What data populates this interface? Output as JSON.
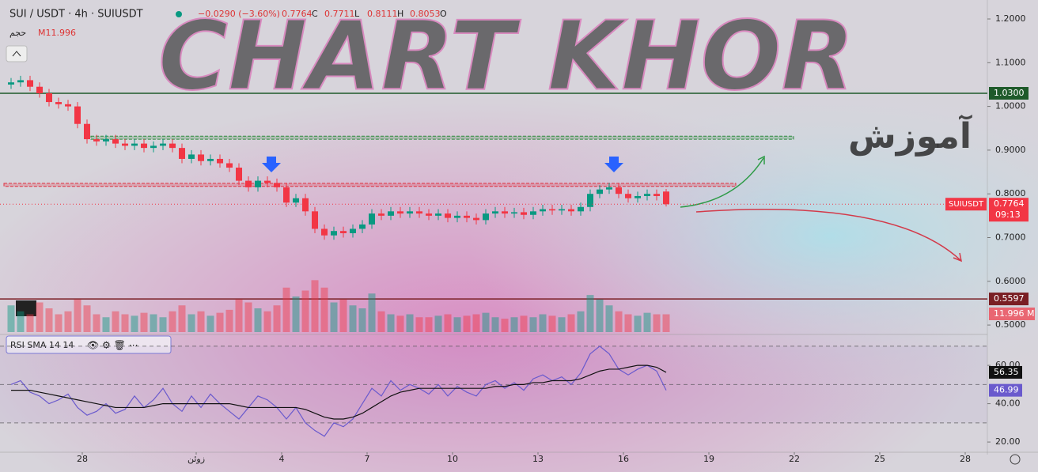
{
  "chart_data": {
    "type": "candlestick",
    "symbol": "SUI / USDT · 4h · SUIUSDT",
    "change": "−0.0290 (−3.60%)",
    "ohlc_letters": [
      "O",
      "H",
      "L",
      "C"
    ],
    "watermark": "CHART KHOR",
    "watermark_sub": "آموزش",
    "up_color": "#089981",
    "down_color": "#f23645",
    "ohlc": [
      [
        1.05,
        1.065,
        1.04,
        1.055
      ],
      [
        1.055,
        1.07,
        1.045,
        1.06
      ],
      [
        1.06,
        1.07,
        1.035,
        1.045
      ],
      [
        1.045,
        1.055,
        1.02,
        1.03
      ],
      [
        1.03,
        1.04,
        1.0,
        1.01
      ],
      [
        1.01,
        1.02,
        0.995,
        1.005
      ],
      [
        1.005,
        1.015,
        0.99,
        1.0
      ],
      [
        1.0,
        1.01,
        0.95,
        0.96
      ],
      [
        0.96,
        0.97,
        0.915,
        0.925
      ],
      [
        0.925,
        0.935,
        0.91,
        0.92
      ],
      [
        0.92,
        0.935,
        0.91,
        0.925
      ],
      [
        0.925,
        0.935,
        0.905,
        0.915
      ],
      [
        0.915,
        0.925,
        0.9,
        0.91
      ],
      [
        0.91,
        0.925,
        0.9,
        0.915
      ],
      [
        0.915,
        0.925,
        0.895,
        0.905
      ],
      [
        0.905,
        0.92,
        0.895,
        0.91
      ],
      [
        0.91,
        0.925,
        0.9,
        0.915
      ],
      [
        0.915,
        0.925,
        0.895,
        0.905
      ],
      [
        0.905,
        0.915,
        0.87,
        0.88
      ],
      [
        0.88,
        0.9,
        0.87,
        0.89
      ],
      [
        0.89,
        0.9,
        0.865,
        0.875
      ],
      [
        0.875,
        0.89,
        0.865,
        0.88
      ],
      [
        0.88,
        0.89,
        0.86,
        0.87
      ],
      [
        0.87,
        0.88,
        0.85,
        0.86
      ],
      [
        0.86,
        0.87,
        0.82,
        0.83
      ],
      [
        0.83,
        0.84,
        0.805,
        0.815
      ],
      [
        0.815,
        0.84,
        0.805,
        0.83
      ],
      [
        0.83,
        0.84,
        0.815,
        0.825
      ],
      [
        0.825,
        0.835,
        0.805,
        0.815
      ],
      [
        0.815,
        0.825,
        0.77,
        0.78
      ],
      [
        0.78,
        0.8,
        0.77,
        0.79
      ],
      [
        0.79,
        0.8,
        0.75,
        0.76
      ],
      [
        0.76,
        0.77,
        0.71,
        0.72
      ],
      [
        0.72,
        0.73,
        0.695,
        0.705
      ],
      [
        0.705,
        0.725,
        0.695,
        0.715
      ],
      [
        0.715,
        0.725,
        0.7,
        0.71
      ],
      [
        0.71,
        0.73,
        0.7,
        0.72
      ],
      [
        0.72,
        0.74,
        0.71,
        0.73
      ],
      [
        0.73,
        0.765,
        0.72,
        0.755
      ],
      [
        0.755,
        0.765,
        0.74,
        0.75
      ],
      [
        0.75,
        0.77,
        0.74,
        0.76
      ],
      [
        0.76,
        0.77,
        0.745,
        0.755
      ],
      [
        0.755,
        0.77,
        0.745,
        0.76
      ],
      [
        0.76,
        0.77,
        0.745,
        0.755
      ],
      [
        0.755,
        0.765,
        0.74,
        0.75
      ],
      [
        0.75,
        0.765,
        0.74,
        0.755
      ],
      [
        0.755,
        0.765,
        0.735,
        0.745
      ],
      [
        0.745,
        0.76,
        0.735,
        0.75
      ],
      [
        0.75,
        0.76,
        0.735,
        0.745
      ],
      [
        0.745,
        0.755,
        0.73,
        0.74
      ],
      [
        0.74,
        0.765,
        0.73,
        0.755
      ],
      [
        0.755,
        0.77,
        0.745,
        0.76
      ],
      [
        0.76,
        0.77,
        0.745,
        0.755
      ],
      [
        0.755,
        0.768,
        0.745,
        0.758
      ],
      [
        0.758,
        0.768,
        0.742,
        0.752
      ],
      [
        0.752,
        0.77,
        0.742,
        0.76
      ],
      [
        0.76,
        0.775,
        0.75,
        0.765
      ],
      [
        0.765,
        0.775,
        0.752,
        0.762
      ],
      [
        0.762,
        0.775,
        0.752,
        0.765
      ],
      [
        0.765,
        0.775,
        0.75,
        0.76
      ],
      [
        0.76,
        0.78,
        0.75,
        0.77
      ],
      [
        0.77,
        0.81,
        0.76,
        0.8
      ],
      [
        0.8,
        0.82,
        0.79,
        0.81
      ],
      [
        0.81,
        0.825,
        0.8,
        0.815
      ],
      [
        0.815,
        0.825,
        0.79,
        0.8
      ],
      [
        0.8,
        0.81,
        0.78,
        0.79
      ],
      [
        0.79,
        0.805,
        0.78,
        0.795
      ],
      [
        0.795,
        0.81,
        0.785,
        0.8
      ],
      [
        0.8,
        0.81,
        0.785,
        0.795
      ],
      [
        0.8053,
        0.8111,
        0.7711,
        0.7764
      ]
    ],
    "xlim": [
      -0.667,
      103.333
    ],
    "xticks": [
      {
        "value": 8,
        "label": "28"
      },
      {
        "value": 20,
        "label": "زوئن"
      },
      {
        "value": 29,
        "label": "4"
      },
      {
        "value": 38,
        "label": "7"
      },
      {
        "value": 47,
        "label": "10"
      },
      {
        "value": 56,
        "label": "13"
      },
      {
        "value": 65,
        "label": "16"
      },
      {
        "value": 74,
        "label": "19"
      },
      {
        "value": 83,
        "label": "22"
      },
      {
        "value": 92,
        "label": "25"
      },
      {
        "value": 101,
        "label": "28"
      }
    ],
    "ylim": [
      0.4839,
      1.2434
    ],
    "yticks": [
      {
        "value": 1.2,
        "label": "1.2000"
      },
      {
        "value": 1.1,
        "label": "1.1000"
      },
      {
        "value": 1.0,
        "label": "1.0000"
      },
      {
        "value": 0.9,
        "label": "0.9000"
      },
      {
        "value": 0.8,
        "label": "0.8000"
      },
      {
        "value": 0.7,
        "label": "0.7000"
      },
      {
        "value": 0.6,
        "label": "0.6000"
      },
      {
        "value": 0.5,
        "label": "0.5000"
      }
    ],
    "levels": [
      {
        "value": 1.03,
        "label": "1.0300",
        "color": "#1e5a2a"
      },
      {
        "value": 0.5597,
        "label": "0.5597",
        "color": "#7a1f24"
      }
    ],
    "zones": [
      {
        "range": [
          0.925,
          0.932
        ],
        "color": "#2e8b3e"
      },
      {
        "range": [
          0.817,
          0.824
        ],
        "color": "#e03040"
      }
    ],
    "last_price_label": [
      "SUIUSDT",
      "09:13"
    ],
    "volume": {
      "name": "حجم",
      "legend_label": "M11.996",
      "last_label": "11.996 M",
      "ylim": [
        0,
        40
      ],
      "values": [
        18,
        14,
        12,
        20,
        16,
        12,
        14,
        22,
        18,
        12,
        10,
        14,
        12,
        11,
        13,
        12,
        10,
        14,
        18,
        12,
        14,
        11,
        13,
        15,
        22,
        20,
        16,
        14,
        18,
        30,
        24,
        28,
        35,
        30,
        20,
        22,
        18,
        16,
        26,
        14,
        12,
        11,
        12,
        10,
        10,
        11,
        12,
        10,
        11,
        12,
        13,
        10,
        9,
        10,
        11,
        10,
        12,
        11,
        10,
        12,
        14,
        25,
        22,
        18,
        14,
        12,
        11,
        13,
        12,
        11.996
      ]
    },
    "rsi": {
      "legend": "RSI SMA 14 14",
      "ylim": [
        15.5,
        75.3
      ],
      "yticks": [
        {
          "value": 60,
          "label": "60.00"
        },
        {
          "value": 40,
          "label": "40.00"
        },
        {
          "value": 20,
          "label": "20.00"
        }
      ],
      "bands": [
        70,
        50,
        30
      ],
      "color": "#6a5acd",
      "sma_color": "#111111",
      "values": [
        50,
        52,
        46,
        44,
        40,
        42,
        45,
        38,
        34,
        36,
        40,
        35,
        37,
        44,
        38,
        42,
        48,
        40,
        36,
        44,
        38,
        45,
        40,
        36,
        32,
        38,
        44,
        42,
        38,
        32,
        38,
        30,
        26,
        23,
        30,
        28,
        32,
        40,
        48,
        44,
        52,
        47,
        50,
        48,
        45,
        50,
        44,
        49,
        46,
        44,
        50,
        52,
        48,
        51,
        47,
        53,
        55,
        52,
        54,
        50,
        56,
        66,
        70,
        66,
        58,
        55,
        58,
        60,
        57,
        46.99
      ],
      "sma": [
        47,
        47,
        47,
        46,
        45,
        44,
        43,
        42,
        41,
        40,
        39,
        38,
        38,
        38,
        38,
        39,
        40,
        40,
        40,
        40,
        40,
        40,
        40,
        40,
        39,
        38,
        38,
        38,
        38,
        38,
        38,
        37,
        35,
        33,
        32,
        32,
        33,
        35,
        38,
        41,
        44,
        46,
        47,
        48,
        48,
        48,
        48,
        48,
        48,
        48,
        48,
        49,
        49,
        50,
        50,
        51,
        51,
        52,
        52,
        52,
        53,
        55,
        57,
        58,
        58,
        59,
        60,
        60,
        59,
        56.35
      ]
    }
  }
}
